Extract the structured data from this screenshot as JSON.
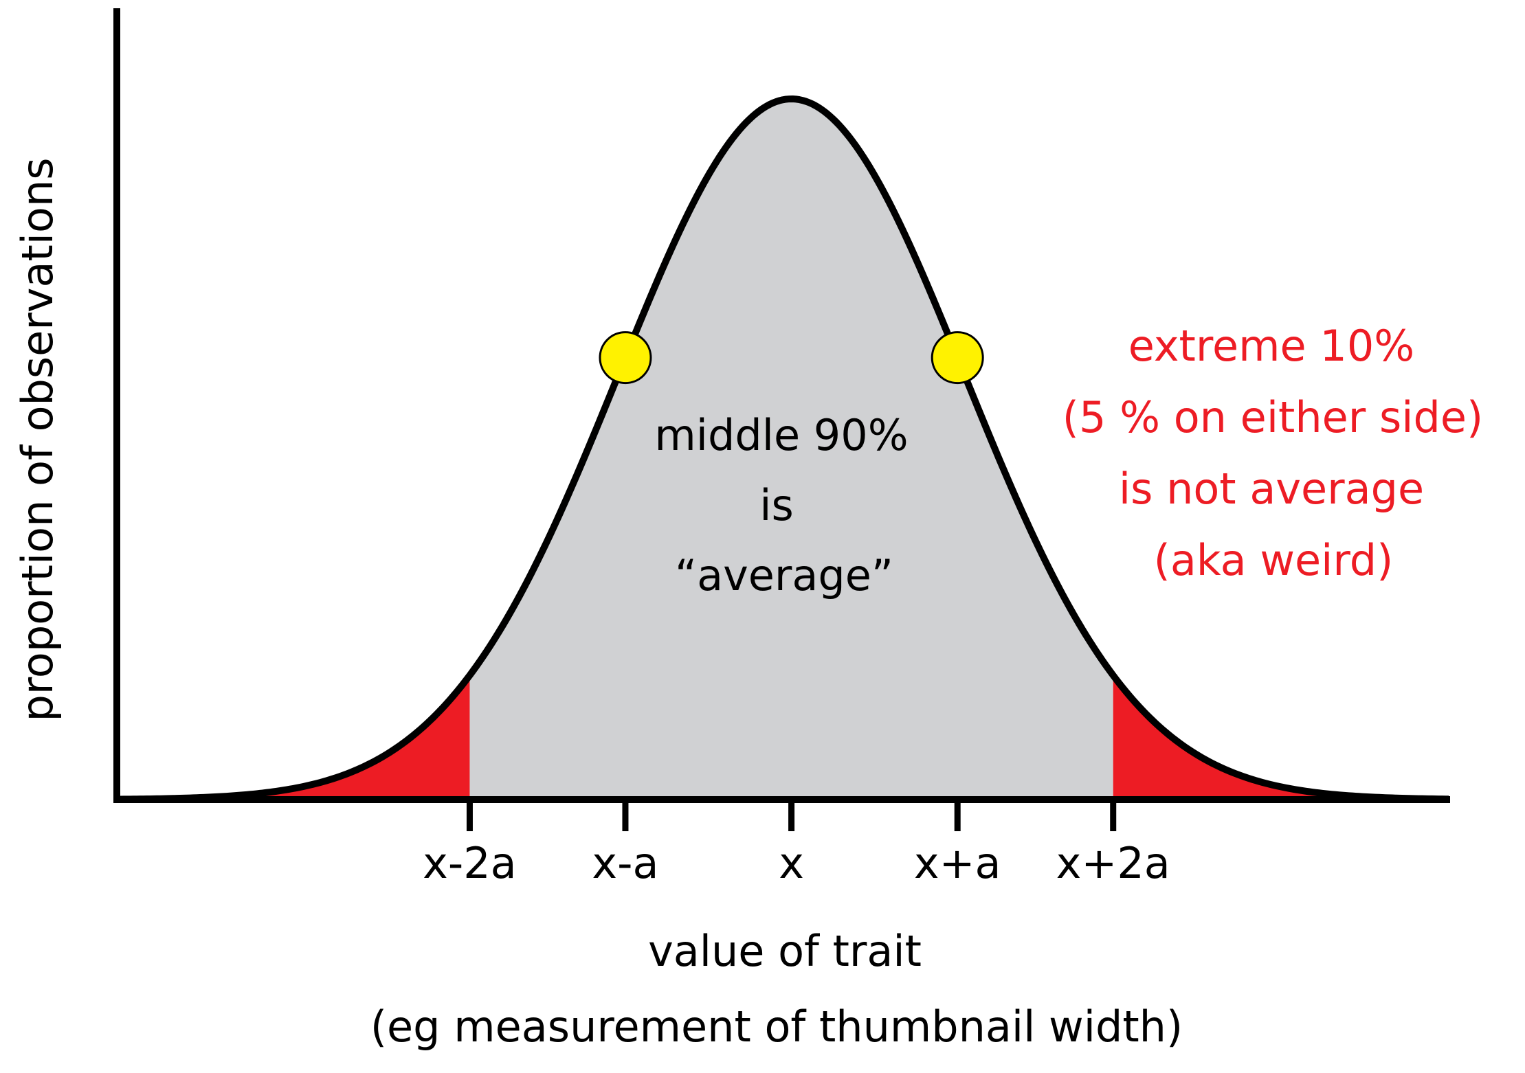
{
  "chart_data": {
    "type": "area",
    "title": "",
    "distribution": "normal",
    "mean": 0,
    "sd": 1,
    "x_range": [
      -3.9,
      3.8
    ],
    "ylabel": "proportion of observations",
    "xlabel": "value of trait",
    "xlabel_sub": "(eg measurement of thumbnail width)",
    "ticks": [
      {
        "value": -1.86,
        "label": "x-2a"
      },
      {
        "value": -0.96,
        "label": "x-a"
      },
      {
        "value": 0,
        "label": "x"
      },
      {
        "value": 0.96,
        "label": "x+a"
      },
      {
        "value": 1.86,
        "label": "x+2a"
      }
    ],
    "regions": [
      {
        "name": "middle",
        "from": -1.86,
        "to": 1.86,
        "percent": 90,
        "color": "#d0d1d3"
      },
      {
        "name": "left-tail",
        "from": -3.9,
        "to": -1.86,
        "percent": 5,
        "color": "#ed1c24"
      },
      {
        "name": "right-tail",
        "from": 1.86,
        "to": 3.8,
        "percent": 5,
        "color": "#ed1c24"
      }
    ],
    "markers": [
      {
        "x": -0.96,
        "color": "#fff200"
      },
      {
        "x": 0.96,
        "color": "#fff200"
      }
    ],
    "annotations": {
      "middle": [
        "middle 90%",
        "is",
        "“average”"
      ],
      "extreme": [
        "extreme 10%",
        "(5 % on either side)",
        "is not average",
        "(aka weird)"
      ]
    },
    "colors": {
      "curve": "#000000",
      "middle_fill": "#d0d1d3",
      "tail_fill": "#ed1c24",
      "marker": "#fff200",
      "extreme_text": "#ed1c24"
    }
  }
}
